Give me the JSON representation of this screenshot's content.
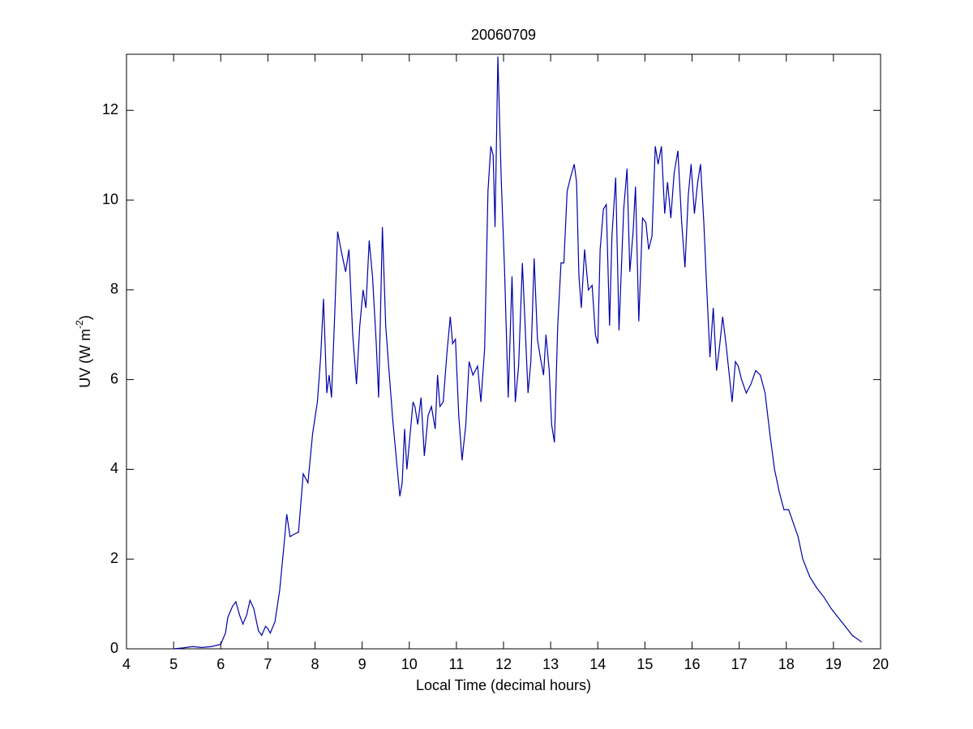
{
  "chart_data": {
    "type": "line",
    "title": "20060709",
    "xlabel": "Local Time (decimal hours)",
    "ylabel": [
      "UV (W m",
      "-2",
      ")"
    ],
    "xlim": [
      4,
      20
    ],
    "xticks": [
      4,
      5,
      6,
      7,
      8,
      9,
      10,
      11,
      12,
      13,
      14,
      15,
      16,
      17,
      18,
      19,
      20
    ],
    "ylim": [
      0,
      13.25
    ],
    "yticks": [
      0,
      2,
      4,
      6,
      8,
      10,
      12
    ],
    "grid": false,
    "series": [
      {
        "color": "#0000a8",
        "x": [
          5.0,
          5.2,
          5.4,
          5.6,
          5.8,
          6.0,
          6.1,
          6.15,
          6.25,
          6.32,
          6.4,
          6.47,
          6.55,
          6.62,
          6.7,
          6.8,
          6.87,
          6.95,
          7.0,
          7.05,
          7.15,
          7.25,
          7.35,
          7.4,
          7.47,
          7.55,
          7.65,
          7.75,
          7.85,
          7.95,
          8.05,
          8.12,
          8.18,
          8.25,
          8.3,
          8.35,
          8.42,
          8.48,
          8.55,
          8.65,
          8.72,
          8.8,
          8.88,
          8.95,
          9.02,
          9.08,
          9.15,
          9.22,
          9.3,
          9.35,
          9.43,
          9.5,
          9.57,
          9.65,
          9.72,
          9.8,
          9.85,
          9.9,
          9.95,
          10.02,
          10.08,
          10.12,
          10.18,
          10.25,
          10.32,
          10.4,
          10.47,
          10.55,
          10.6,
          10.65,
          10.72,
          10.8,
          10.87,
          10.92,
          10.98,
          11.05,
          11.12,
          11.2,
          11.27,
          11.35,
          11.45,
          11.52,
          11.6,
          11.67,
          11.73,
          11.78,
          11.82,
          11.88,
          11.95,
          12.02,
          12.1,
          12.18,
          12.25,
          12.32,
          12.4,
          12.45,
          12.52,
          12.58,
          12.65,
          12.72,
          12.78,
          12.85,
          12.9,
          12.97,
          13.02,
          13.08,
          13.15,
          13.22,
          13.28,
          13.35,
          13.42,
          13.5,
          13.55,
          13.6,
          13.65,
          13.72,
          13.8,
          13.88,
          13.95,
          14.0,
          14.05,
          14.12,
          14.18,
          14.25,
          14.3,
          14.38,
          14.45,
          14.55,
          14.62,
          14.68,
          14.75,
          14.8,
          14.87,
          14.95,
          15.02,
          15.08,
          15.15,
          15.22,
          15.28,
          15.35,
          15.42,
          15.48,
          15.55,
          15.62,
          15.7,
          15.78,
          15.85,
          15.92,
          15.98,
          16.05,
          16.12,
          16.18,
          16.25,
          16.3,
          16.38,
          16.45,
          16.52,
          16.58,
          16.65,
          16.72,
          16.78,
          16.85,
          16.92,
          16.98,
          17.05,
          17.15,
          17.25,
          17.35,
          17.45,
          17.55,
          17.65,
          17.75,
          17.85,
          17.95,
          18.05,
          18.15,
          18.25,
          18.35,
          18.5,
          18.65,
          18.8,
          18.95,
          19.1,
          19.25,
          19.4,
          19.6
        ],
        "values": [
          0.0,
          0.02,
          0.05,
          0.03,
          0.05,
          0.1,
          0.35,
          0.7,
          0.95,
          1.05,
          0.75,
          0.55,
          0.75,
          1.08,
          0.9,
          0.4,
          0.3,
          0.5,
          0.45,
          0.35,
          0.6,
          1.3,
          2.4,
          3.0,
          2.5,
          2.55,
          2.6,
          3.9,
          3.7,
          4.8,
          5.5,
          6.5,
          7.8,
          5.7,
          6.1,
          5.6,
          7.5,
          9.3,
          8.9,
          8.4,
          8.9,
          7.0,
          5.9,
          7.2,
          8.0,
          7.6,
          9.1,
          8.3,
          6.8,
          5.6,
          9.4,
          7.2,
          6.2,
          5.1,
          4.3,
          3.4,
          3.7,
          4.9,
          4.0,
          4.8,
          5.5,
          5.4,
          5.0,
          5.6,
          4.3,
          5.2,
          5.4,
          4.9,
          6.1,
          5.4,
          5.5,
          6.6,
          7.4,
          6.8,
          6.9,
          5.2,
          4.2,
          5.0,
          6.4,
          6.1,
          6.3,
          5.5,
          6.7,
          10.2,
          11.2,
          11.0,
          9.4,
          13.2,
          10.5,
          8.5,
          5.6,
          8.3,
          5.5,
          6.3,
          8.6,
          7.4,
          5.7,
          6.4,
          8.7,
          6.9,
          6.5,
          6.1,
          7.0,
          6.2,
          5.0,
          4.6,
          7.2,
          8.6,
          8.6,
          10.2,
          10.5,
          10.8,
          10.4,
          8.3,
          7.6,
          8.9,
          8.0,
          8.1,
          7.0,
          6.8,
          8.9,
          9.8,
          9.9,
          7.2,
          9.2,
          10.5,
          7.1,
          9.8,
          10.7,
          8.4,
          9.3,
          10.3,
          7.3,
          9.6,
          9.5,
          8.9,
          9.2,
          11.2,
          10.8,
          11.2,
          9.7,
          10.4,
          9.6,
          10.6,
          11.1,
          9.5,
          8.5,
          10.1,
          10.8,
          9.7,
          10.4,
          10.8,
          9.5,
          8.3,
          6.5,
          7.6,
          6.2,
          6.7,
          7.4,
          6.8,
          6.2,
          5.5,
          6.4,
          6.3,
          6.0,
          5.7,
          5.9,
          6.2,
          6.1,
          5.7,
          4.8,
          4.0,
          3.5,
          3.1,
          3.1,
          2.8,
          2.5,
          2.0,
          1.6,
          1.35,
          1.15,
          0.9,
          0.7,
          0.5,
          0.3,
          0.15
        ]
      }
    ]
  }
}
